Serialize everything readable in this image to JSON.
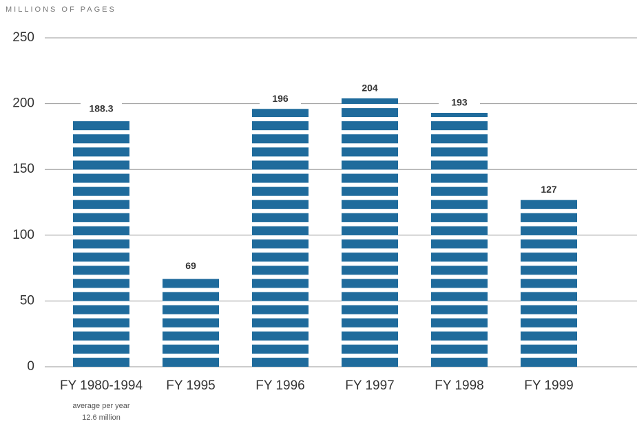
{
  "chart_data": {
    "type": "bar",
    "ylabel": "MILLIONS OF PAGES",
    "categories": [
      "FY 1980-1994",
      "FY 1995",
      "FY 1996",
      "FY 1997",
      "FY 1998",
      "FY 1999"
    ],
    "values": [
      188.3,
      69,
      196,
      204,
      193,
      127
    ],
    "color": "#1f6b9c",
    "ylim": [
      0,
      250
    ],
    "yticks": [
      0,
      50,
      100,
      150,
      200,
      250
    ],
    "grid": true,
    "annotations": [
      "average per year",
      "12.6 million"
    ]
  }
}
